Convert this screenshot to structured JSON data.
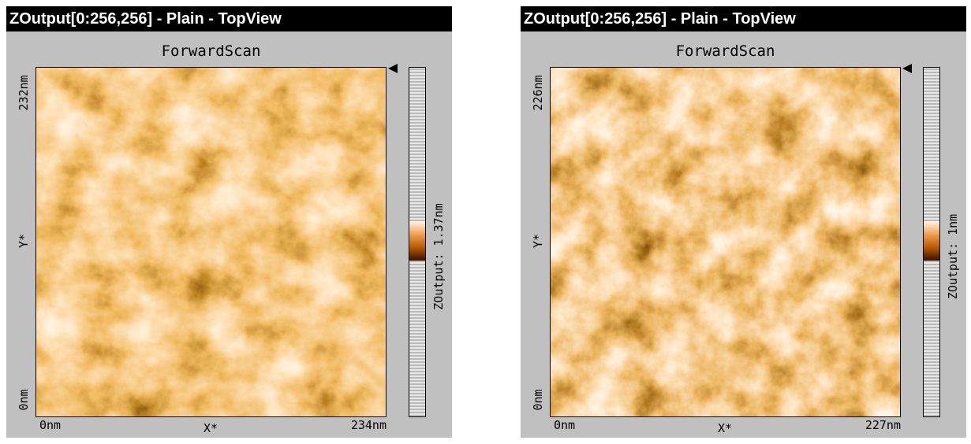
{
  "windows": [
    {
      "title": "ZOutput[0:256,256] - Plain - TopView",
      "scan_label": "ForwardScan",
      "y_axis": {
        "top": "232nm",
        "label": "Y*",
        "bottom": "0nm"
      },
      "x_axis": {
        "left": "0nm",
        "label": "X*",
        "right": "234nm"
      },
      "colorbar_label": "ZOutput: 1.37nm"
    },
    {
      "title": "ZOutput[0:256,256] - Plain - TopView",
      "scan_label": "ForwardScan",
      "y_axis": {
        "top": "226nm",
        "label": "Y*",
        "bottom": "0nm"
      },
      "x_axis": {
        "left": "0nm",
        "label": "X*",
        "right": "227nm"
      },
      "colorbar_label": "ZOutput: 1nm"
    }
  ]
}
